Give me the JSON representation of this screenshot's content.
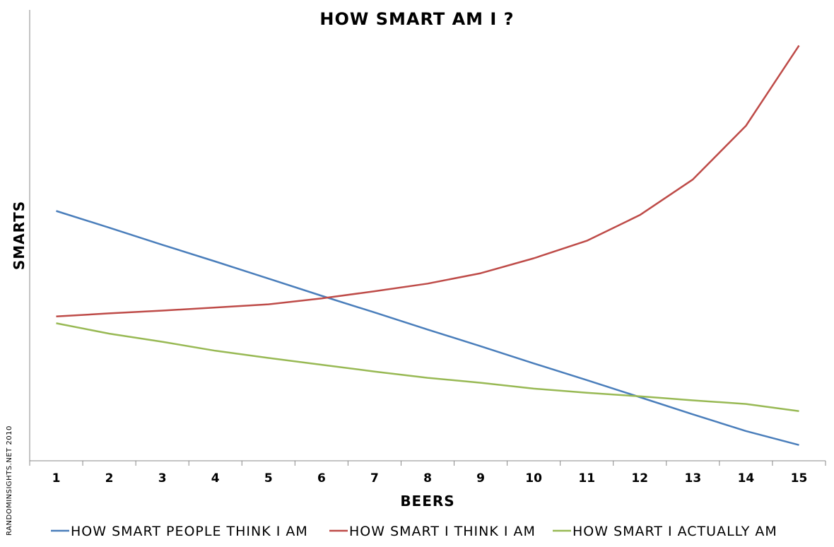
{
  "chart_data": {
    "type": "line",
    "title": "HOW SMART AM I ?",
    "xlabel": "BEERS",
    "ylabel": "SMARTS",
    "categories": [
      "1",
      "2",
      "3",
      "4",
      "5",
      "6",
      "7",
      "8",
      "9",
      "10",
      "11",
      "12",
      "13",
      "14",
      "15"
    ],
    "ylim": [
      0,
      100
    ],
    "grid": false,
    "legend_position": "bottom",
    "series": [
      {
        "name": "HOW SMART PEOPLE THINK I AM",
        "color": "#4a7ebb",
        "values": [
          55.4,
          51.7,
          47.9,
          44.2,
          40.4,
          36.6,
          32.9,
          29.1,
          25.4,
          21.6,
          17.9,
          14.1,
          10.3,
          6.6,
          3.5
        ]
      },
      {
        "name": "HOW SMART I THINK I AM",
        "color": "#be4b48",
        "values": [
          32.0,
          32.7,
          33.3,
          34.0,
          34.7,
          36.0,
          37.6,
          39.3,
          41.6,
          44.9,
          48.8,
          54.5,
          62.4,
          74.3,
          92.1
        ]
      },
      {
        "name": "HOW SMART I ACTUALLY AM",
        "color": "#98b954",
        "values": [
          30.5,
          28.2,
          26.4,
          24.4,
          22.8,
          21.3,
          19.8,
          18.4,
          17.3,
          16.0,
          15.1,
          14.3,
          13.4,
          12.6,
          11.0
        ]
      }
    ]
  },
  "credit": "RANDOMINSIGHTS.NET  2010"
}
